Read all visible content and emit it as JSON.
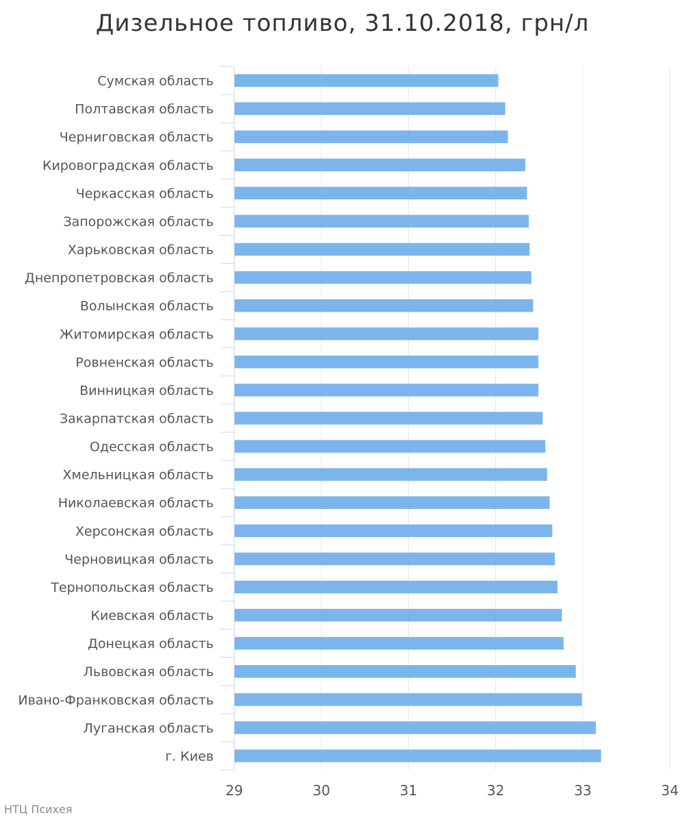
{
  "chart_title": "Дизельное топливо, 31.10.2018, грн/л",
  "credit": "НТЦ Психея",
  "colors": {
    "bar": "#7cb5ec",
    "grid": "#e6e6e6",
    "axis": "#ccd6eb",
    "text": "#555555"
  },
  "chart_data": {
    "type": "bar",
    "orientation": "horizontal",
    "title": "Дизельное топливо, 31.10.2018, грн/л",
    "xlabel": "",
    "ylabel": "",
    "xlim": [
      29,
      34
    ],
    "x_ticks": [
      "29",
      "30",
      "31",
      "32",
      "33",
      "34"
    ],
    "grid": true,
    "categories": [
      "Сумская область",
      "Полтавская область",
      "Черниговская область",
      "Кировоградская область",
      "Черкасская область",
      "Запорожская область",
      "Харьковская область",
      "Днепропетровская область",
      "Волынская область",
      "Житомирская область",
      "Ровненская область",
      "Винницкая область",
      "Закарпатская область",
      "Одесская область",
      "Хмельницкая область",
      "Николаевская область",
      "Херсонская область",
      "Черновицкая область",
      "Тернопольская область",
      "Киевская область",
      "Донецкая область",
      "Львовская область",
      "Ивано-Франковская область",
      "Луганская область",
      "г. Киев"
    ],
    "values": [
      32.03,
      32.11,
      32.14,
      32.34,
      32.36,
      32.38,
      32.39,
      32.41,
      32.43,
      32.49,
      32.49,
      32.49,
      32.54,
      32.57,
      32.59,
      32.62,
      32.65,
      32.68,
      32.71,
      32.76,
      32.78,
      32.92,
      32.99,
      33.15,
      33.21
    ]
  }
}
